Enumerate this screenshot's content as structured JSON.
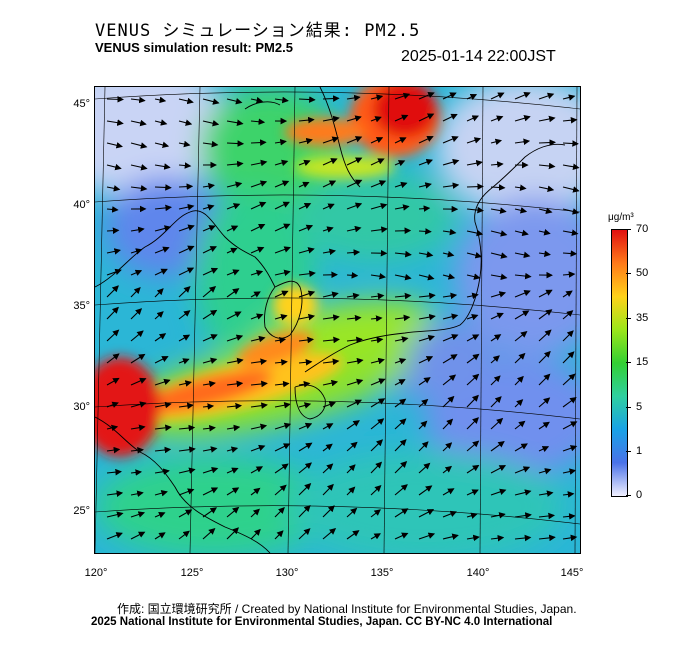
{
  "header": {
    "title_jp": "VENUS シミュレーション結果: PM2.5",
    "title_en": "VENUS simulation result: PM2.5",
    "timestamp": "2025-01-14 22:00JST"
  },
  "map": {
    "lat_labels": [
      "45°",
      "40°",
      "35°",
      "30°",
      "25°"
    ],
    "lon_labels": [
      "120°",
      "125°",
      "130°",
      "135°",
      "140°",
      "145°"
    ]
  },
  "legend": {
    "unit": "μg/m³",
    "ticks": [
      "70",
      "50",
      "35",
      "15",
      "5",
      "1",
      "0"
    ],
    "colors": [
      "#f0f0ff",
      "#4a72e8",
      "#19a2e6",
      "#2fd0a0",
      "#33d033",
      "#9be61a",
      "#ffd21a",
      "#ff7a1a",
      "#e01010"
    ]
  },
  "footer": {
    "credit": "作成: 国立環境研究所 / Created by National Institute for Environmental Studies, Japan.",
    "license": "2025 National Institute for Environmental Studies, Japan. CC BY-NC 4.0 International"
  }
}
